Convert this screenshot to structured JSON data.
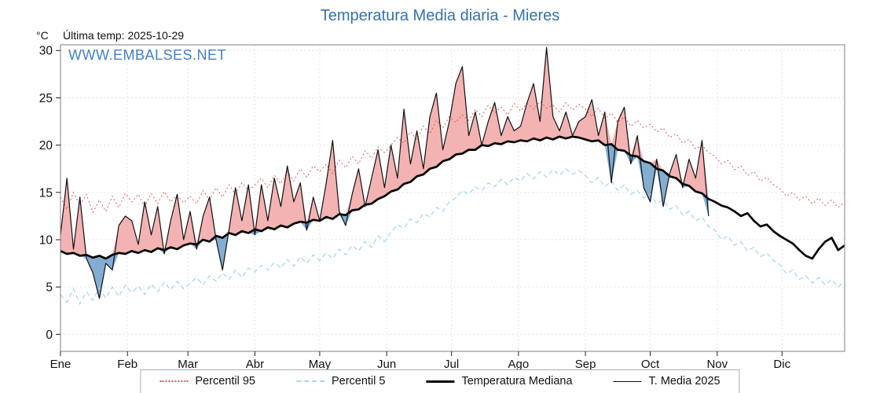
{
  "title": "Temperatura Media diaria - Mieres",
  "header": {
    "y_unit": "°C",
    "last_temp": "Última temp: 2025-10-29"
  },
  "watermark": "WWW.EMBALSES.NET",
  "colors": {
    "title": "#3572b0",
    "watermark": "#4080c8",
    "p95_line": "#e25555",
    "p5_line": "#a8d8e8",
    "median_line": "#000000",
    "t2025_line": "#111111",
    "fill_above": "#f2a6a6",
    "fill_below": "#6f9fca",
    "grid": "#e3e3eb"
  },
  "legend": [
    {
      "label": "Percentil 95",
      "style": "p95"
    },
    {
      "label": "Percentil 5",
      "style": "p5"
    },
    {
      "label": "Temperatura Mediana",
      "style": "med"
    },
    {
      "label": "T. Media 2025",
      "style": "t25"
    }
  ],
  "chart_data": {
    "type": "line",
    "title": "Temperatura Media diaria - Mieres",
    "ylabel": "°C",
    "ylim": [
      0,
      30
    ],
    "yticks": [
      0,
      5,
      10,
      15,
      20,
      25,
      30
    ],
    "grid": true,
    "legend_position": "bottom",
    "months": [
      {
        "label": "Ene",
        "start_day": 1
      },
      {
        "label": "Feb",
        "start_day": 32
      },
      {
        "label": "Mar",
        "start_day": 60
      },
      {
        "label": "Abr",
        "start_day": 91
      },
      {
        "label": "May",
        "start_day": 121
      },
      {
        "label": "Jun",
        "start_day": 152
      },
      {
        "label": "Jul",
        "start_day": 182
      },
      {
        "label": "Ago",
        "start_day": 213
      },
      {
        "label": "Sep",
        "start_day": 244
      },
      {
        "label": "Oct",
        "start_day": 274
      },
      {
        "label": "Nov",
        "start_day": 305
      },
      {
        "label": "Dic",
        "start_day": 335
      }
    ],
    "x_days": [
      1,
      4,
      7,
      10,
      13,
      16,
      19,
      22,
      25,
      28,
      31,
      34,
      37,
      40,
      43,
      46,
      49,
      52,
      55,
      58,
      61,
      64,
      67,
      70,
      73,
      76,
      79,
      82,
      85,
      88,
      91,
      94,
      97,
      100,
      103,
      106,
      109,
      112,
      115,
      118,
      121,
      124,
      127,
      130,
      133,
      136,
      139,
      142,
      145,
      148,
      151,
      154,
      157,
      160,
      163,
      166,
      169,
      172,
      175,
      178,
      181,
      184,
      187,
      190,
      193,
      196,
      199,
      202,
      205,
      208,
      211,
      214,
      217,
      220,
      223,
      226,
      229,
      232,
      235,
      238,
      241,
      244,
      247,
      250,
      253,
      256,
      259,
      262,
      265,
      268,
      271,
      274,
      277,
      280,
      283,
      286,
      289,
      292,
      295,
      298,
      301,
      304,
      307,
      310,
      313,
      316,
      319,
      322,
      325,
      328,
      331,
      334,
      337,
      340,
      343,
      346,
      349,
      352,
      355,
      358,
      361,
      364
    ],
    "series": [
      {
        "name": "Percentil 95",
        "values": [
          14.5,
          13.2,
          15.0,
          13.6,
          14.8,
          12.9,
          14.2,
          13.0,
          14.6,
          13.4,
          14.9,
          14.0,
          14.8,
          13.5,
          14.9,
          13.8,
          15.1,
          14.0,
          14.7,
          13.9,
          14.6,
          13.8,
          15.2,
          14.2,
          15.5,
          14.5,
          15.8,
          14.8,
          16.0,
          15.2,
          15.8,
          16.5,
          15.5,
          16.8,
          15.9,
          17.2,
          16.2,
          17.5,
          16.6,
          17.8,
          17.2,
          18.0,
          17.0,
          18.4,
          17.6,
          18.8,
          18.0,
          19.4,
          18.6,
          19.8,
          19.2,
          20.0,
          20.8,
          20.2,
          21.4,
          20.6,
          22.0,
          21.2,
          22.6,
          21.8,
          23.0,
          22.4,
          23.2,
          22.6,
          23.8,
          23.0,
          24.2,
          23.4,
          24.0,
          23.2,
          24.4,
          23.6,
          24.4,
          23.8,
          24.6,
          23.9,
          24.2,
          23.5,
          24.5,
          23.7,
          24.3,
          23.8,
          23.0,
          23.9,
          22.8,
          23.4,
          22.4,
          23.0,
          22.0,
          22.6,
          21.8,
          22.2,
          21.4,
          21.8,
          20.8,
          21.2,
          20.2,
          20.6,
          19.6,
          20.0,
          19.2,
          18.8,
          18.0,
          18.4,
          17.4,
          17.8,
          16.8,
          17.2,
          16.2,
          16.6,
          15.8,
          15.4,
          14.6,
          15.0,
          14.2,
          14.6,
          13.8,
          14.4,
          13.6,
          14.2,
          13.4,
          14.0
        ]
      },
      {
        "name": "Percentil 5",
        "values": [
          4.2,
          3.4,
          4.8,
          3.2,
          4.5,
          3.6,
          4.9,
          3.8,
          5.0,
          4.0,
          5.2,
          4.4,
          5.1,
          4.2,
          5.3,
          4.5,
          5.5,
          4.7,
          5.6,
          4.8,
          5.4,
          6.0,
          5.2,
          6.2,
          5.6,
          6.5,
          5.8,
          6.8,
          6.0,
          7.0,
          6.6,
          7.3,
          6.8,
          7.6,
          7.0,
          7.9,
          7.2,
          8.2,
          7.5,
          8.4,
          7.8,
          8.6,
          8.0,
          9.0,
          8.4,
          9.4,
          8.8,
          9.8,
          9.2,
          10.4,
          9.8,
          10.8,
          11.6,
          11.2,
          12.2,
          11.8,
          12.8,
          12.4,
          13.4,
          13.0,
          14.0,
          14.4,
          15.2,
          14.8,
          15.6,
          15.2,
          16.0,
          15.6,
          16.4,
          15.8,
          16.6,
          16.2,
          17.0,
          16.4,
          17.2,
          16.6,
          17.4,
          16.8,
          17.5,
          16.9,
          17.3,
          16.8,
          16.0,
          16.6,
          15.6,
          16.2,
          15.2,
          15.8,
          14.8,
          15.2,
          14.4,
          14.8,
          13.8,
          14.2,
          13.2,
          13.6,
          12.6,
          13.0,
          12.0,
          12.4,
          11.4,
          11.0,
          10.0,
          10.4,
          9.4,
          9.8,
          8.8,
          9.2,
          8.2,
          8.6,
          7.8,
          7.4,
          6.4,
          6.8,
          5.8,
          6.2,
          5.4,
          6.0,
          5.2,
          5.8,
          5.0,
          5.6
        ]
      },
      {
        "name": "Temperatura Mediana",
        "values": [
          8.8,
          8.5,
          8.6,
          8.3,
          8.4,
          8.1,
          8.3,
          8.0,
          8.4,
          8.6,
          8.5,
          8.8,
          8.6,
          8.9,
          8.7,
          9.1,
          8.9,
          9.2,
          9.0,
          9.4,
          9.6,
          9.5,
          10.0,
          9.8,
          10.4,
          10.2,
          10.7,
          10.5,
          10.9,
          10.7,
          11.1,
          10.9,
          11.3,
          11.1,
          11.5,
          11.3,
          11.7,
          11.9,
          11.8,
          12.1,
          12.0,
          12.4,
          12.2,
          12.7,
          12.6,
          13.1,
          13.2,
          13.7,
          13.8,
          14.3,
          14.6,
          15.1,
          15.3,
          15.9,
          16.1,
          16.7,
          16.9,
          17.5,
          17.7,
          18.3,
          18.5,
          19.0,
          19.1,
          19.5,
          19.5,
          20.0,
          19.9,
          20.2,
          20.1,
          20.4,
          20.3,
          20.5,
          20.4,
          20.7,
          20.5,
          20.8,
          20.6,
          20.9,
          20.7,
          20.9,
          20.8,
          20.6,
          20.4,
          20.5,
          20.0,
          20.1,
          19.5,
          19.4,
          18.9,
          18.8,
          18.3,
          18.1,
          17.5,
          17.3,
          16.7,
          16.5,
          15.9,
          15.7,
          15.1,
          14.9,
          14.3,
          14.0,
          13.6,
          13.4,
          13.0,
          12.5,
          12.8,
          12.0,
          11.4,
          11.6,
          10.9,
          10.4,
          10.0,
          9.6,
          8.9,
          8.3,
          8.0,
          9.0,
          9.8,
          10.2,
          8.9,
          9.4
        ]
      },
      {
        "name": "T. Media 2025",
        "values": [
          10.5,
          16.5,
          9.0,
          14.5,
          8.0,
          6.5,
          3.8,
          7.5,
          6.8,
          11.5,
          12.5,
          12.0,
          9.5,
          14.0,
          10.5,
          13.5,
          8.5,
          12.0,
          14.8,
          10.0,
          13.0,
          9.0,
          12.5,
          14.5,
          10.0,
          6.8,
          11.0,
          15.5,
          12.0,
          15.8,
          10.5,
          15.8,
          12.0,
          16.5,
          13.5,
          17.8,
          14.0,
          16.0,
          11.0,
          14.5,
          12.0,
          16.0,
          20.5,
          13.0,
          11.5,
          14.8,
          17.5,
          13.5,
          16.5,
          19.5,
          15.5,
          20.0,
          16.5,
          23.8,
          18.0,
          21.5,
          17.5,
          23.0,
          25.5,
          19.5,
          22.5,
          26.5,
          28.3,
          21.0,
          23.5,
          20.0,
          22.5,
          24.5,
          21.0,
          23.0,
          21.5,
          22.0,
          24.5,
          26.5,
          22.5,
          30.3,
          23.0,
          21.5,
          23.5,
          21.0,
          22.5,
          23.0,
          24.8,
          21.0,
          23.5,
          16.0,
          22.5,
          24.0,
          18.0,
          21.0,
          15.5,
          14.0,
          18.5,
          13.5,
          17.0,
          19.0,
          15.5,
          18.5,
          16.5,
          20.5,
          12.5,
          null,
          null,
          null,
          null,
          null,
          null,
          null,
          null,
          null,
          null,
          null,
          null,
          null,
          null,
          null,
          null,
          null,
          null,
          null,
          null,
          null
        ]
      }
    ],
    "fills": [
      {
        "between": [
          "T. Media 2025",
          "Temperatura Mediana"
        ],
        "when": "above",
        "color": "#f2a6a6"
      },
      {
        "between": [
          "T. Media 2025",
          "Temperatura Mediana"
        ],
        "when": "below",
        "color": "#6f9fca"
      }
    ]
  }
}
